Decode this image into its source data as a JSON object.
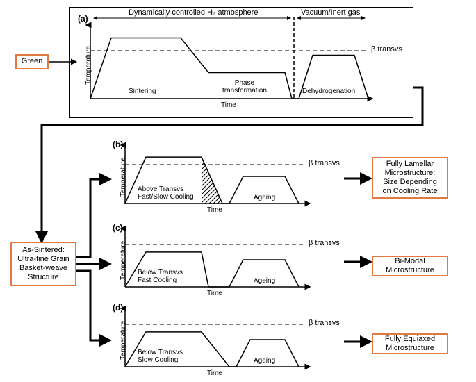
{
  "colors": {
    "box_border": "#e07a3e",
    "line": "#000000",
    "bg": "#ffffff",
    "text": "#000000"
  },
  "fonts": {
    "box_size": 11,
    "axis_size": 10,
    "panel_size": 12
  },
  "boxes": {
    "green": "Green",
    "as_sintered": "As-Sintered:\nUltra-fine Grain\nBasket-weave\nStructure",
    "lamellar": "Fully Lamellar\nMicrostructure:\nSize Depending\non Cooling Rate",
    "bimodal": "Bi-Modal\nMicrostructure",
    "equiaxed": "Fully Equiaxed\nMicrostructure"
  },
  "top_labels": {
    "h2": "Dynamically controlled H₂ atmosphere",
    "vacuum": "Vacuum/Inert gas"
  },
  "panel_a": {
    "label": "(a)",
    "y_axis": "Temperature",
    "x_axis": "Time",
    "beta": "β transvs",
    "sintering": "Sintering",
    "phase": "Phase\ntransformation",
    "dehydro": "Dehydrogenation",
    "xlim": [
      0,
      400
    ],
    "ylim": [
      0,
      80
    ],
    "profile": [
      [
        0,
        0
      ],
      [
        30,
        70
      ],
      [
        130,
        70
      ],
      [
        170,
        30
      ],
      [
        280,
        30
      ],
      [
        290,
        0
      ],
      [
        300,
        0
      ],
      [
        320,
        50
      ],
      [
        380,
        50
      ],
      [
        400,
        0
      ]
    ],
    "beta_y": 55,
    "vline_x": 293
  },
  "panel_b": {
    "label": "(b)",
    "y_axis": "Temperature",
    "x_axis": "Time",
    "beta": "β transvs",
    "cooling": "Above Transvs\nFast/Slow Cooling",
    "ageing": "Ageing",
    "xlim": [
      0,
      260
    ],
    "ylim": [
      0,
      70
    ],
    "profile": [
      [
        0,
        0
      ],
      [
        30,
        60
      ],
      [
        110,
        60
      ],
      [
        140,
        0
      ],
      [
        150,
        0
      ],
      [
        170,
        35
      ],
      [
        230,
        35
      ],
      [
        250,
        0
      ]
    ],
    "beta_y": 50,
    "hatch": [
      [
        110,
        60
      ],
      [
        140,
        0
      ],
      [
        110,
        0
      ]
    ]
  },
  "panel_c": {
    "label": "(c)",
    "y_axis": "Temperature",
    "x_axis": "Time",
    "beta": "β transvs",
    "cooling": "Below Transvs\nFast Cooling",
    "ageing": "Ageing",
    "xlim": [
      0,
      260
    ],
    "ylim": [
      0,
      70
    ],
    "profile": [
      [
        0,
        0
      ],
      [
        30,
        45
      ],
      [
        110,
        45
      ],
      [
        120,
        0
      ],
      [
        150,
        0
      ],
      [
        170,
        35
      ],
      [
        230,
        35
      ],
      [
        250,
        0
      ]
    ],
    "beta_y": 55
  },
  "panel_d": {
    "label": "(d)",
    "y_axis": "Temperature",
    "x_axis": "Time",
    "beta": "β transvs",
    "cooling": "Below Transvs\nSlow Cooling",
    "ageing": "Ageing",
    "xlim": [
      0,
      260
    ],
    "ylim": [
      0,
      70
    ],
    "profile": [
      [
        0,
        0
      ],
      [
        30,
        45
      ],
      [
        110,
        45
      ],
      [
        150,
        0
      ],
      [
        160,
        0
      ],
      [
        180,
        35
      ],
      [
        230,
        35
      ],
      [
        250,
        0
      ]
    ],
    "beta_y": 55
  }
}
